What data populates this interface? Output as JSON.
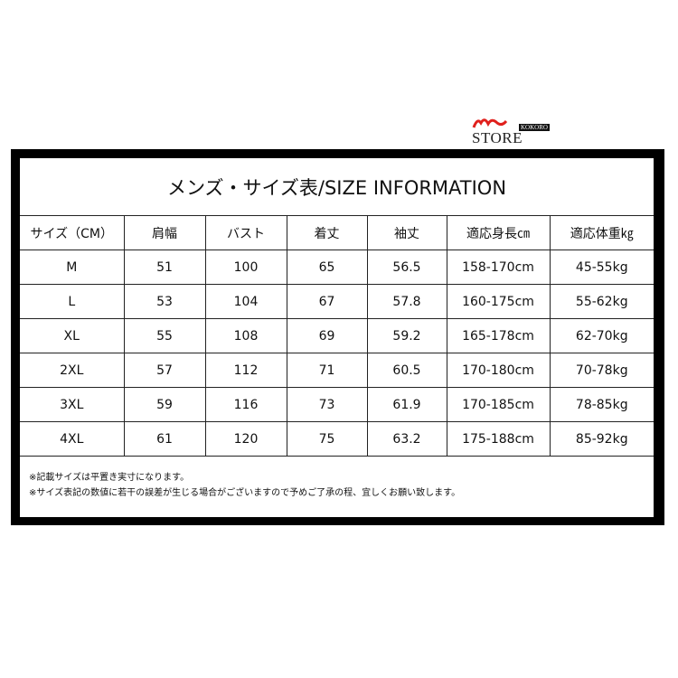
{
  "logo": {
    "brand": "KOKORO",
    "name": "STORE",
    "accent": "#e0201c"
  },
  "title": "メンズ・サイズ表/SIZE INFORMATION",
  "headers": [
    "サイズ（CM）",
    "肩幅",
    "バスト",
    "着丈",
    "袖丈",
    "適応身長㎝",
    "適応体重㎏"
  ],
  "rows": [
    [
      "M",
      "51",
      "100",
      "65",
      "56.5",
      "158-170cm",
      "45-55kg"
    ],
    [
      "L",
      "53",
      "104",
      "67",
      "57.8",
      "160-175cm",
      "55-62kg"
    ],
    [
      "XL",
      "55",
      "108",
      "69",
      "59.2",
      "165-178cm",
      "62-70kg"
    ],
    [
      "2XL",
      "57",
      "112",
      "71",
      "60.5",
      "170-180cm",
      "70-78kg"
    ],
    [
      "3XL",
      "59",
      "116",
      "73",
      "61.9",
      "170-185cm",
      "78-85kg"
    ],
    [
      "4XL",
      "61",
      "120",
      "75",
      "63.2",
      "175-188cm",
      "85-92kg"
    ]
  ],
  "notes": [
    "※記載サイズは平置き実寸になります。",
    "※サイズ表記の数値に若干の誤差が生じる場合がございますので予めご了承の程、宜しくお願い致します。"
  ]
}
